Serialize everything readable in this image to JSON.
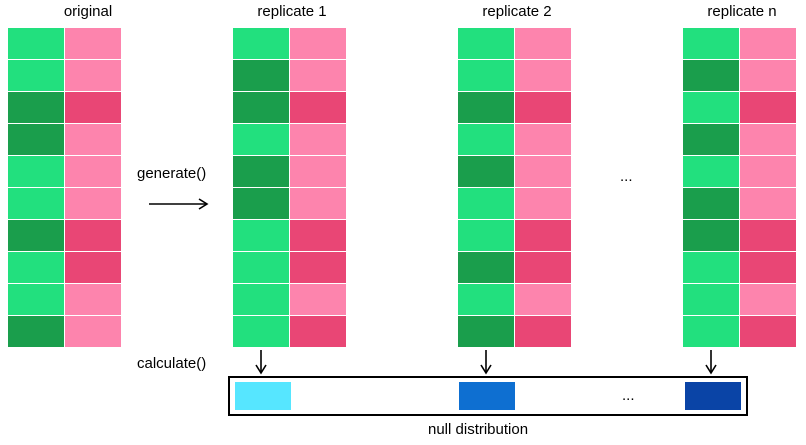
{
  "colors": {
    "green_light": "#22e07e",
    "green_dark": "#1a9e4c",
    "pink_light": "#fd84ad",
    "pink_dark": "#e94675",
    "stat_1": "#56e6ff",
    "stat_2": "#0e6fd1",
    "stat_n": "#0a44a6"
  },
  "columns": [
    {
      "title": "original",
      "rows": [
        [
          "green_light",
          "pink_light"
        ],
        [
          "green_light",
          "pink_light"
        ],
        [
          "green_dark",
          "pink_dark"
        ],
        [
          "green_dark",
          "pink_light"
        ],
        [
          "green_light",
          "pink_light"
        ],
        [
          "green_light",
          "pink_light"
        ],
        [
          "green_dark",
          "pink_dark"
        ],
        [
          "green_light",
          "pink_dark"
        ],
        [
          "green_light",
          "pink_light"
        ],
        [
          "green_dark",
          "pink_light"
        ]
      ]
    },
    {
      "title": "replicate 1",
      "rows": [
        [
          "green_light",
          "pink_light"
        ],
        [
          "green_dark",
          "pink_light"
        ],
        [
          "green_dark",
          "pink_dark"
        ],
        [
          "green_light",
          "pink_light"
        ],
        [
          "green_dark",
          "pink_light"
        ],
        [
          "green_dark",
          "pink_light"
        ],
        [
          "green_light",
          "pink_dark"
        ],
        [
          "green_light",
          "pink_dark"
        ],
        [
          "green_light",
          "pink_light"
        ],
        [
          "green_light",
          "pink_dark"
        ]
      ]
    },
    {
      "title": "replicate 2",
      "rows": [
        [
          "green_light",
          "pink_light"
        ],
        [
          "green_light",
          "pink_light"
        ],
        [
          "green_dark",
          "pink_dark"
        ],
        [
          "green_light",
          "pink_light"
        ],
        [
          "green_dark",
          "pink_light"
        ],
        [
          "green_light",
          "pink_light"
        ],
        [
          "green_light",
          "pink_dark"
        ],
        [
          "green_dark",
          "pink_dark"
        ],
        [
          "green_light",
          "pink_light"
        ],
        [
          "green_dark",
          "pink_dark"
        ]
      ]
    },
    {
      "title": "replicate n",
      "rows": [
        [
          "green_light",
          "pink_light"
        ],
        [
          "green_dark",
          "pink_light"
        ],
        [
          "green_light",
          "pink_dark"
        ],
        [
          "green_dark",
          "pink_light"
        ],
        [
          "green_light",
          "pink_light"
        ],
        [
          "green_dark",
          "pink_light"
        ],
        [
          "green_dark",
          "pink_dark"
        ],
        [
          "green_light",
          "pink_dark"
        ],
        [
          "green_light",
          "pink_light"
        ],
        [
          "green_light",
          "pink_dark"
        ]
      ]
    }
  ],
  "labels": {
    "generate": "generate()",
    "calculate": "calculate()",
    "ellipsis": "...",
    "null_distribution": "null distribution"
  },
  "stats": [
    "stat_1",
    "stat_2",
    "stat_n"
  ]
}
